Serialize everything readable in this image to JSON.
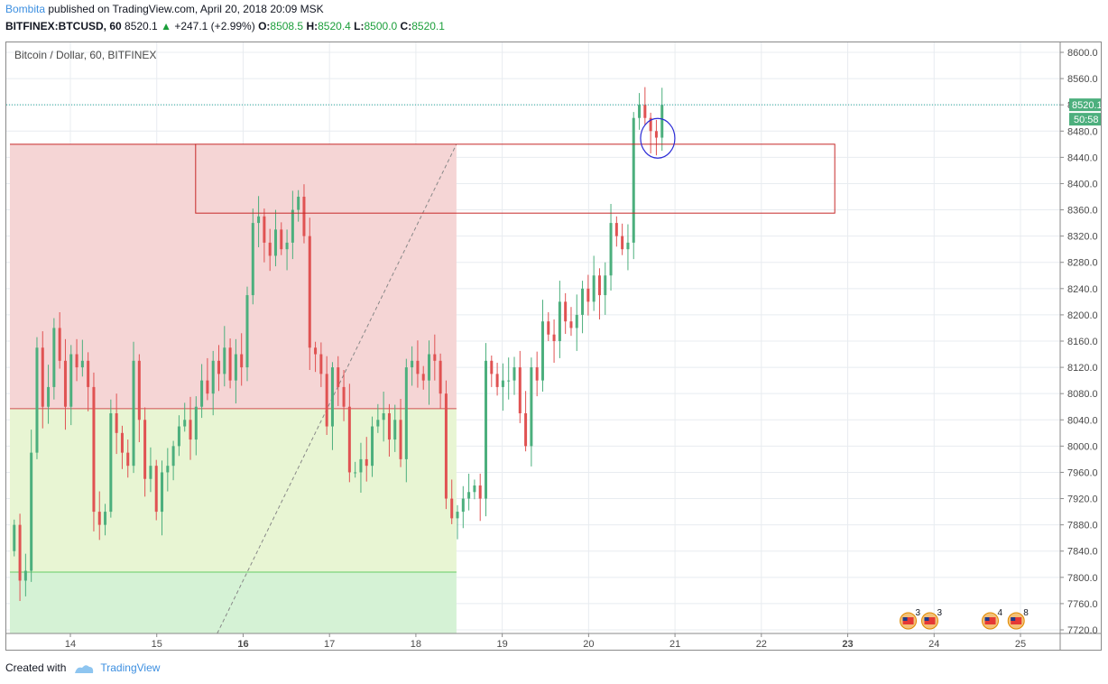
{
  "header": {
    "author": "Bombita",
    "published_text": "published on TradingView.com, April 20, 2018 20:09 MSK",
    "symbol": "BITFINEX:BTCUSD, 60",
    "last": "8520.1",
    "change_arrow": "▲",
    "change": "+247.1 (+2.99%)",
    "o_label": "O:",
    "o": "8508.5",
    "h_label": "H:",
    "h": "8520.4",
    "l_label": "L:",
    "l": "8500.0",
    "c_label": "C:",
    "c": "8520.1"
  },
  "chart_data": {
    "type": "candlestick",
    "title": "Bitcoin / Dollar, 60, BITFINEX",
    "ylim": [
      7712,
      8608
    ],
    "y_ticks": [
      7720,
      7760,
      7800,
      7840,
      7880,
      7920,
      7960,
      8000,
      8040,
      8080,
      8120,
      8160,
      8200,
      8240,
      8280,
      8320,
      8360,
      8400,
      8440,
      8480,
      8520,
      8560,
      8600
    ],
    "y_tick_labels": [
      "7720.0",
      "7760.0",
      "7800.0",
      "7840.0",
      "7880.0",
      "7920.0",
      "7960.0",
      "8000.0",
      "8040.0",
      "8080.0",
      "8120.0",
      "8160.0",
      "8200.0",
      "8240.0",
      "8280.0",
      "8320.0",
      "8360.0",
      "8400.0",
      "8440.0",
      "8480.0",
      "8520.0",
      "8560.0",
      "8600.0"
    ],
    "x_ticks": [
      {
        "label": "14",
        "day": 14,
        "bold": false
      },
      {
        "label": "15",
        "day": 15,
        "bold": false
      },
      {
        "label": "16",
        "day": 16,
        "bold": true
      },
      {
        "label": "17",
        "day": 17,
        "bold": false
      },
      {
        "label": "18",
        "day": 18,
        "bold": false
      },
      {
        "label": "19",
        "day": 19,
        "bold": false
      },
      {
        "label": "20",
        "day": 20,
        "bold": false
      },
      {
        "label": "21",
        "day": 21,
        "bold": false
      },
      {
        "label": "22",
        "day": 22,
        "bold": false
      },
      {
        "label": "23",
        "day": 23,
        "bold": true
      },
      {
        "label": "24",
        "day": 24,
        "bold": false
      },
      {
        "label": "25",
        "day": 25,
        "bold": false
      }
    ],
    "last_price": 8520.1,
    "last_price_label": "8520.1",
    "countdown_label": "50:58",
    "candle_closes": [
      7880,
      7795,
      7810,
      7990,
      8150,
      8060,
      8090,
      8180,
      8130,
      8060,
      8140,
      8120,
      8130,
      8090,
      7900,
      7880,
      7900,
      8050,
      8020,
      7990,
      7970,
      8130,
      8040,
      7950,
      7970,
      7900,
      7960,
      7970,
      8000,
      8030,
      8040,
      8010,
      8060,
      8100,
      8080,
      8130,
      8110,
      8150,
      8100,
      8140,
      8120,
      8230,
      8340,
      8350,
      8310,
      8290,
      8330,
      8300,
      8310,
      8360,
      8380,
      8320,
      8150,
      8140,
      8110,
      8030,
      8120,
      8090,
      8060,
      7960,
      7960,
      7980,
      7970,
      8030,
      8040,
      8050,
      8010,
      8040,
      7980,
      8120,
      8130,
      8110,
      8100,
      8140,
      8130,
      8080,
      7920,
      7890,
      7900,
      7920,
      7930,
      7940,
      7920,
      8130,
      8110,
      8090,
      8100,
      8100,
      8120,
      8050,
      8000,
      8120,
      8100,
      8190,
      8170,
      8160,
      8220,
      8190,
      8180,
      8200,
      8240,
      8220,
      8260,
      8230,
      8260,
      8340,
      8320,
      8300,
      8310,
      8500,
      8520,
      8500,
      8480,
      8470,
      8520
    ],
    "annotations": {
      "rr_entry": 8057,
      "rr_target": 8460,
      "rr_stop": 7808,
      "rr_start_day": 13.3,
      "rr_end_day": 18.47,
      "zone_top": 8460,
      "zone_bottom": 8355,
      "zone_start_day": 15.45,
      "zone_end_day": 22.85,
      "ellipse_day": 20.8,
      "ellipse_price": 8469
    },
    "events": [
      {
        "day": 23.7,
        "count": "3"
      },
      {
        "day": 23.95,
        "count": "3"
      },
      {
        "day": 24.65,
        "count": "4"
      },
      {
        "day": 24.95,
        "count": "8"
      }
    ]
  },
  "footer": {
    "created_with": "Created with",
    "brand": "TradingView"
  },
  "colors": {
    "up": "#4caf7d",
    "down": "#e05252",
    "grid": "#e8ecf0",
    "target_zone": "#f5d5d5",
    "stop_zone": "#e8f5d3",
    "stop_zone_low": "#d5f2d5",
    "brand": "#3d8fe0"
  }
}
